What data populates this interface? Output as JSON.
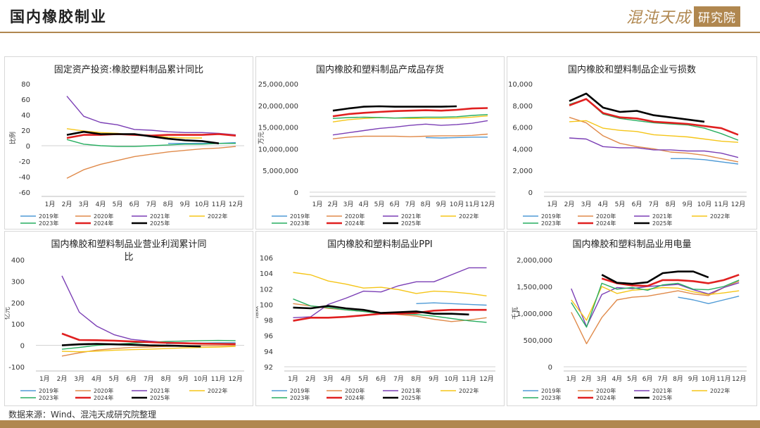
{
  "header": {
    "title": "国内橡胶制业",
    "brand_text": "混沌天成",
    "brand_box": "研究院"
  },
  "footer": {
    "source": "数据来源：Wind、混沌天成研究院整理"
  },
  "legend_labels": [
    "2019年",
    "2020年",
    "2021年",
    "2022年",
    "2023年",
    "2024年",
    "2025年"
  ],
  "series_colors": {
    "2019年": "#4e9ad6",
    "2020年": "#e08a4a",
    "2021年": "#7b3fb5",
    "2022年": "#f5c518",
    "2023年": "#27ae60",
    "2024年": "#e02020",
    "2025年": "#000000"
  },
  "chart_data": [
    {
      "type": "line",
      "title": "固定资产投资:橡胶塑料制品累计同比",
      "ylabel": "比例",
      "x": [
        "1月",
        "2月",
        "3月",
        "4月",
        "5月",
        "6月",
        "7月",
        "8月",
        "9月",
        "10月",
        "11月",
        "12月"
      ],
      "yticks": [
        -60,
        -40,
        -20,
        0,
        20,
        40,
        60,
        80
      ],
      "ylim": [
        -60,
        80
      ],
      "series": [
        {
          "name": "2019年",
          "values": [
            null,
            null,
            null,
            null,
            null,
            null,
            null,
            3,
            3,
            3,
            3,
            4
          ]
        },
        {
          "name": "2020年",
          "values": [
            null,
            -42,
            -31,
            -24,
            -19,
            -14,
            -11,
            -8,
            -6,
            -4,
            -3,
            -1
          ]
        },
        {
          "name": "2021年",
          "values": [
            null,
            64,
            38,
            30,
            27,
            21,
            20,
            18,
            17,
            17,
            16,
            14
          ]
        },
        {
          "name": "2022年",
          "values": [
            null,
            22,
            19,
            17,
            16,
            14,
            13,
            11,
            10,
            10,
            null,
            null
          ]
        },
        {
          "name": "2023年",
          "values": [
            null,
            8,
            2,
            0,
            -1,
            -1,
            0,
            1,
            2,
            2,
            3,
            3
          ]
        },
        {
          "name": "2024年",
          "values": [
            null,
            10,
            14,
            14,
            15,
            14,
            13,
            14,
            14,
            14,
            15,
            13
          ]
        },
        {
          "name": "2025年",
          "values": [
            null,
            14,
            18,
            15,
            15,
            15,
            12,
            9,
            7,
            6,
            3,
            null
          ]
        }
      ]
    },
    {
      "type": "line",
      "title": "国内橡胶和塑料制品产成品存货",
      "ylabel": "万元",
      "x": [
        "1月",
        "2月",
        "3月",
        "4月",
        "5月",
        "6月",
        "7月",
        "8月",
        "9月",
        "10月",
        "11月",
        "12月"
      ],
      "yticks": [
        0,
        5000000,
        10000000,
        15000000,
        20000000,
        25000000
      ],
      "ytick_labels": [
        "0",
        "5,000,000",
        "10,000,000",
        "15,000,000",
        "20,000,000",
        "25,000,000"
      ],
      "ylim": [
        0,
        25000000
      ],
      "series": [
        {
          "name": "2019年",
          "values": [
            null,
            null,
            null,
            null,
            null,
            null,
            null,
            12600000,
            12500000,
            12600000,
            12700000,
            12700000
          ]
        },
        {
          "name": "2020年",
          "values": [
            null,
            12300000,
            12700000,
            12900000,
            12900000,
            12900000,
            12800000,
            12900000,
            13000000,
            13000000,
            13100000,
            13400000
          ]
        },
        {
          "name": "2021年",
          "values": [
            null,
            13200000,
            13700000,
            14200000,
            14700000,
            15000000,
            15400000,
            15700000,
            15400000,
            15600000,
            15900000,
            16500000
          ]
        },
        {
          "name": "2022年",
          "values": [
            null,
            16200000,
            16700000,
            17000000,
            17200000,
            17100000,
            17000000,
            17000000,
            17000000,
            17100000,
            17300000,
            17600000
          ]
        },
        {
          "name": "2023年",
          "values": [
            null,
            17000000,
            17200000,
            17300000,
            17200000,
            17100000,
            17200000,
            17300000,
            17300000,
            17400000,
            17700000,
            17900000
          ]
        },
        {
          "name": "2024年",
          "values": [
            null,
            17500000,
            18000000,
            18300000,
            18500000,
            18700000,
            18800000,
            18900000,
            18800000,
            19000000,
            19300000,
            19400000
          ]
        },
        {
          "name": "2025年",
          "values": [
            null,
            18800000,
            19300000,
            19700000,
            19800000,
            19700000,
            19700000,
            19700000,
            19700000,
            19800000,
            null,
            null
          ]
        }
      ]
    },
    {
      "type": "line",
      "title": "国内橡胶和塑料制品企业亏损数",
      "ylabel": "个",
      "x": [
        "1月",
        "2月",
        "3月",
        "4月",
        "5月",
        "6月",
        "7月",
        "8月",
        "9月",
        "10月",
        "11月",
        "12月"
      ],
      "yticks": [
        0,
        2000,
        4000,
        6000,
        8000,
        10000
      ],
      "ytick_labels": [
        "0",
        "2,000",
        "4,000",
        "6,000",
        "8,000",
        "10,000"
      ],
      "ylim": [
        0,
        10000
      ],
      "series": [
        {
          "name": "2019年",
          "values": [
            null,
            null,
            null,
            null,
            null,
            null,
            null,
            3100,
            3100,
            3000,
            2800,
            2600
          ]
        },
        {
          "name": "2020年",
          "values": [
            null,
            6900,
            6400,
            5200,
            4500,
            4200,
            4000,
            3700,
            3600,
            3400,
            3100,
            2800
          ]
        },
        {
          "name": "2021年",
          "values": [
            null,
            5000,
            4900,
            4200,
            4100,
            4100,
            3900,
            3900,
            3800,
            3800,
            3600,
            3200
          ]
        },
        {
          "name": "2022年",
          "values": [
            null,
            6500,
            6600,
            5900,
            5700,
            5600,
            5300,
            5200,
            5100,
            4900,
            4700,
            4600
          ]
        },
        {
          "name": "2023年",
          "values": [
            null,
            8100,
            8600,
            7200,
            6800,
            6600,
            6400,
            6300,
            6200,
            5900,
            5400,
            4800
          ]
        },
        {
          "name": "2024年",
          "values": [
            null,
            8000,
            8600,
            7300,
            6900,
            6800,
            6500,
            6400,
            6300,
            6100,
            5900,
            5300
          ]
        },
        {
          "name": "2025年",
          "values": [
            null,
            8400,
            9100,
            7800,
            7400,
            7500,
            7100,
            6900,
            6700,
            6500,
            null,
            null
          ]
        }
      ]
    },
    {
      "type": "line",
      "title": "国内橡胶和塑料制品业营业利润累计同比",
      "ylabel": "亿元",
      "x": [
        "1月",
        "2月",
        "3月",
        "4月",
        "5月",
        "6月",
        "7月",
        "8月",
        "9月",
        "10月",
        "11月",
        "12月"
      ],
      "yticks": [
        -100,
        0,
        100,
        200,
        300,
        400
      ],
      "ylim": [
        -100,
        400
      ],
      "series": [
        {
          "name": "2019年",
          "values": [
            null,
            null,
            null,
            null,
            null,
            null,
            null,
            8,
            10,
            11,
            12,
            12
          ]
        },
        {
          "name": "2020年",
          "values": [
            null,
            -50,
            -35,
            -22,
            -15,
            -10,
            -8,
            -5,
            -3,
            -2,
            -1,
            0
          ]
        },
        {
          "name": "2021年",
          "values": [
            null,
            325,
            155,
            90,
            50,
            28,
            20,
            14,
            12,
            10,
            8,
            8
          ]
        },
        {
          "name": "2022年",
          "values": [
            null,
            -28,
            -30,
            -27,
            -23,
            -20,
            -18,
            -15,
            -12,
            -10,
            -8,
            -5
          ]
        },
        {
          "name": "2023年",
          "values": [
            null,
            -18,
            -10,
            0,
            5,
            10,
            14,
            18,
            20,
            22,
            23,
            22
          ]
        },
        {
          "name": "2024年",
          "values": [
            null,
            55,
            25,
            24,
            22,
            18,
            15,
            12,
            10,
            8,
            7,
            6
          ]
        },
        {
          "name": "2025年",
          "values": [
            null,
            0,
            5,
            7,
            5,
            3,
            0,
            -1,
            -3,
            -5,
            null,
            null
          ]
        }
      ]
    },
    {
      "type": "line",
      "title": "国内橡胶和塑料制品业PPI",
      "ylabel": "指数",
      "x": [
        "1月",
        "2月",
        "3月",
        "4月",
        "5月",
        "6月",
        "7月",
        "8月",
        "9月",
        "10月",
        "11月",
        "12月"
      ],
      "yticks": [
        92,
        94,
        96,
        98,
        100,
        102,
        104,
        106
      ],
      "ylim": [
        92,
        106
      ],
      "series": [
        {
          "name": "2019年",
          "values": [
            null,
            null,
            null,
            null,
            null,
            null,
            null,
            100.1,
            100.2,
            100.1,
            100.0,
            99.9
          ]
        },
        {
          "name": "2020年",
          "values": [
            100.1,
            99.8,
            99.5,
            99.3,
            99.1,
            98.9,
            98.7,
            98.5,
            98.1,
            97.8,
            98.0,
            98.3
          ]
        },
        {
          "name": "2021年",
          "values": [
            98.3,
            98.4,
            100.0,
            100.8,
            101.7,
            101.6,
            102.4,
            102.9,
            102.9,
            103.8,
            104.7,
            104.7
          ]
        },
        {
          "name": "2022年",
          "values": [
            104.1,
            103.8,
            103.0,
            102.6,
            102.1,
            102.2,
            101.9,
            101.4,
            101.7,
            101.6,
            101.4,
            101.1
          ]
        },
        {
          "name": "2023年",
          "values": [
            100.7,
            99.8,
            99.6,
            99.3,
            99.1,
            98.8,
            98.8,
            98.7,
            98.5,
            98.2,
            97.9,
            97.7
          ]
        },
        {
          "name": "2024年",
          "values": [
            97.9,
            98.3,
            98.3,
            98.4,
            98.6,
            98.8,
            98.8,
            98.9,
            99.2,
            99.3,
            99.3,
            99.3
          ]
        },
        {
          "name": "2025年",
          "values": [
            99.6,
            99.5,
            99.8,
            99.5,
            99.3,
            98.9,
            99.0,
            99.1,
            98.8,
            98.8,
            98.7,
            null
          ]
        }
      ]
    },
    {
      "type": "line",
      "title": "国内橡胶和塑料制品业用电量",
      "ylabel": "千瓦",
      "x": [
        "1月",
        "2月",
        "3月",
        "4月",
        "5月",
        "6月",
        "7月",
        "8月",
        "9月",
        "10月",
        "11月",
        "12月"
      ],
      "yticks": [
        0,
        500000,
        1000000,
        1500000,
        2000000
      ],
      "ytick_labels": [
        "0",
        "500,000",
        "1,000,000",
        "1,500,000",
        "2,000,000"
      ],
      "ylim": [
        0,
        2000000
      ],
      "series": [
        {
          "name": "2019年",
          "values": [
            null,
            null,
            null,
            null,
            null,
            null,
            null,
            1300000,
            1250000,
            1180000,
            1250000,
            1320000
          ]
        },
        {
          "name": "2020年",
          "values": [
            1020000,
            430000,
            920000,
            1250000,
            1300000,
            1320000,
            1370000,
            1420000,
            1360000,
            1330000,
            1480000,
            1600000
          ]
        },
        {
          "name": "2021年",
          "values": [
            1460000,
            750000,
            1350000,
            1480000,
            1460000,
            1500000,
            1520000,
            1540000,
            1440000,
            1360000,
            1480000,
            1570000
          ]
        },
        {
          "name": "2022年",
          "values": [
            1250000,
            870000,
            1500000,
            1370000,
            1430000,
            1450000,
            1480000,
            1470000,
            1400000,
            1350000,
            1380000,
            1420000
          ]
        },
        {
          "name": "2023年",
          "values": [
            1200000,
            740000,
            1560000,
            1450000,
            1480000,
            1430000,
            1530000,
            1560000,
            1450000,
            1440000,
            1500000,
            1620000
          ]
        },
        {
          "name": "2024年",
          "values": [
            null,
            null,
            1650000,
            1560000,
            1520000,
            1510000,
            1620000,
            1620000,
            1600000,
            1560000,
            1620000,
            1720000
          ]
        },
        {
          "name": "2025年",
          "values": [
            null,
            null,
            1720000,
            1570000,
            1550000,
            1580000,
            1750000,
            1780000,
            1780000,
            1670000,
            null,
            null
          ]
        }
      ]
    }
  ]
}
